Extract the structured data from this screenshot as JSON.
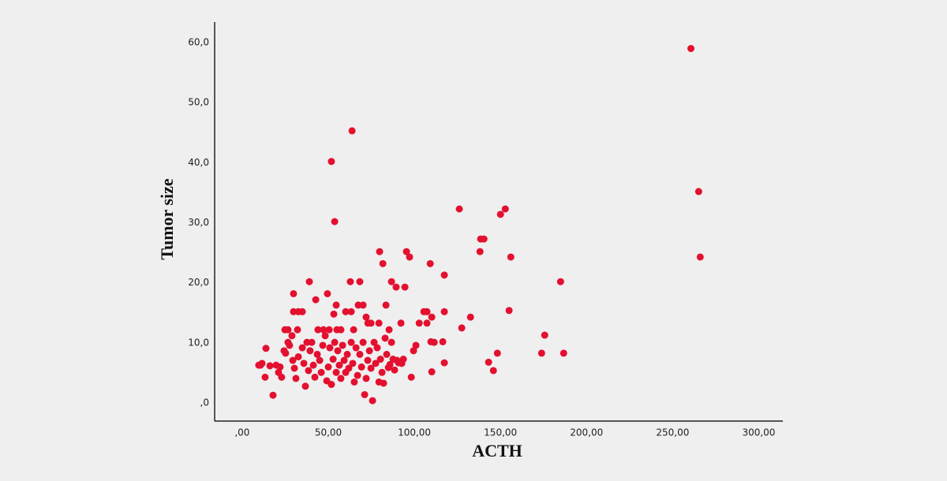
{
  "chart_data": {
    "type": "scatter",
    "x_label": "ACTH",
    "y_label": "Tumor size",
    "color": "#e3102f",
    "xlim": [
      -16,
      314
    ],
    "ylim": [
      -3,
      63.4
    ],
    "xticks": [
      {
        "value": 0,
        "label": ",00"
      },
      {
        "value": 50,
        "label": "50,00"
      },
      {
        "value": 100,
        "label": "100,00"
      },
      {
        "value": 150,
        "label": "150,00"
      },
      {
        "value": 200,
        "label": "200,00"
      },
      {
        "value": 250,
        "label": "250,00"
      },
      {
        "value": 300,
        "label": "300,00"
      }
    ],
    "yticks": [
      {
        "value": 0,
        "label": ",0"
      },
      {
        "value": 10,
        "label": "10,0"
      },
      {
        "value": 20,
        "label": "20,0"
      },
      {
        "value": 30,
        "label": "30,0"
      },
      {
        "value": 40,
        "label": "40,0"
      },
      {
        "value": 50,
        "label": "50,0"
      },
      {
        "value": 60,
        "label": "60,0"
      }
    ],
    "x": [
      260.6,
      63.8,
      51.8,
      53.7,
      265.1,
      266.0,
      126.1,
      152.8,
      150.0,
      138.5,
      140.4,
      138.1,
      156.0,
      184.9,
      132.6,
      155.0,
      175.7,
      173.9,
      186.7,
      148.2,
      143.1,
      145.9,
      127.5,
      117.4,
      109.2,
      95.4,
      97.2,
      79.8,
      81.7,
      86.7,
      89.4,
      94.5,
      62.8,
      68.3,
      39.0,
      49.5,
      29.8,
      42.7,
      54.6,
      67.4,
      70.2,
      83.5,
      29.8,
      32.6,
      34.9,
      60.1,
      63.3,
      53.2,
      105.5,
      107.3,
      117.4,
      110.1,
      72.0,
      26.6,
      44.0,
      47.2,
      50.5,
      55.0,
      57.3,
      64.7,
      73.0,
      74.8,
      79.4,
      92.2,
      102.8,
      107.3,
      85.3,
      32.1,
      24.8,
      10.6,
      11.5,
      13.8,
      13.3,
      17.9,
      16.1,
      19.7,
      22.0,
      22.9,
      21.1,
      24.3,
      25.2,
      26.6,
      27.5,
      28.9,
      29.4,
      30.3,
      31.2,
      32.6,
      34.9,
      35.8,
      36.7,
      37.6,
      38.5,
      39.4,
      40.4,
      41.3,
      42.2,
      43.6,
      45.0,
      45.9,
      46.8,
      48.2,
      49.1,
      50.0,
      50.9,
      51.8,
      52.8,
      53.7,
      54.6,
      55.5,
      56.4,
      57.3,
      58.3,
      59.2,
      60.1,
      61.0,
      61.9,
      63.3,
      64.2,
      65.1,
      66.1,
      67.0,
      68.3,
      69.3,
      70.2,
      71.1,
      72.0,
      72.9,
      73.9,
      74.8,
      75.7,
      76.6,
      77.5,
      78.4,
      79.4,
      80.3,
      81.2,
      82.1,
      83.0,
      83.9,
      84.9,
      85.8,
      86.7,
      87.6,
      88.5,
      89.9,
      90.8,
      92.7,
      93.6,
      98.2,
      99.5,
      100.9,
      109.6,
      110.1,
      111.5,
      116.5,
      117.4,
      9.6
    ],
    "values": [
      59.0,
      45.3,
      40.2,
      30.2,
      35.2,
      24.3,
      32.3,
      32.3,
      31.4,
      27.3,
      27.3,
      25.2,
      24.3,
      20.2,
      14.3,
      15.4,
      11.3,
      8.3,
      8.3,
      8.3,
      6.8,
      5.4,
      12.5,
      21.3,
      23.2,
      25.2,
      24.3,
      25.2,
      23.2,
      20.2,
      19.3,
      19.3,
      20.2,
      20.2,
      20.2,
      18.2,
      18.2,
      17.2,
      16.3,
      16.3,
      16.3,
      16.3,
      15.2,
      15.2,
      15.2,
      15.2,
      15.2,
      14.8,
      15.2,
      15.2,
      15.2,
      14.3,
      14.3,
      12.2,
      12.2,
      12.2,
      12.2,
      12.2,
      12.2,
      12.2,
      13.3,
      13.3,
      13.3,
      13.3,
      13.3,
      13.3,
      12.2,
      12.2,
      12.2,
      6.3,
      6.6,
      9.1,
      4.3,
      1.3,
      6.2,
      6.3,
      6.0,
      4.3,
      5.1,
      8.7,
      8.3,
      10.1,
      9.6,
      11.2,
      7.1,
      5.8,
      4.1,
      7.7,
      9.2,
      6.6,
      2.8,
      10.1,
      5.4,
      8.7,
      10.1,
      6.3,
      4.3,
      8.1,
      7.1,
      5.1,
      9.6,
      11.2,
      3.7,
      6.0,
      9.2,
      3.1,
      7.3,
      10.1,
      5.1,
      8.7,
      6.3,
      4.1,
      9.6,
      7.1,
      5.1,
      8.1,
      5.8,
      10.1,
      6.6,
      3.5,
      9.2,
      4.6,
      8.1,
      6.0,
      10.1,
      1.4,
      4.1,
      7.1,
      8.7,
      5.8,
      0.4,
      10.1,
      6.6,
      9.2,
      3.5,
      7.3,
      5.1,
      3.3,
      10.8,
      8.1,
      5.9,
      6.4,
      10.1,
      7.3,
      5.5,
      7.1,
      6.7,
      6.6,
      7.3,
      4.3,
      8.7,
      9.6,
      10.2,
      5.2,
      10.1,
      10.2,
      6.7,
      6.3
    ]
  }
}
